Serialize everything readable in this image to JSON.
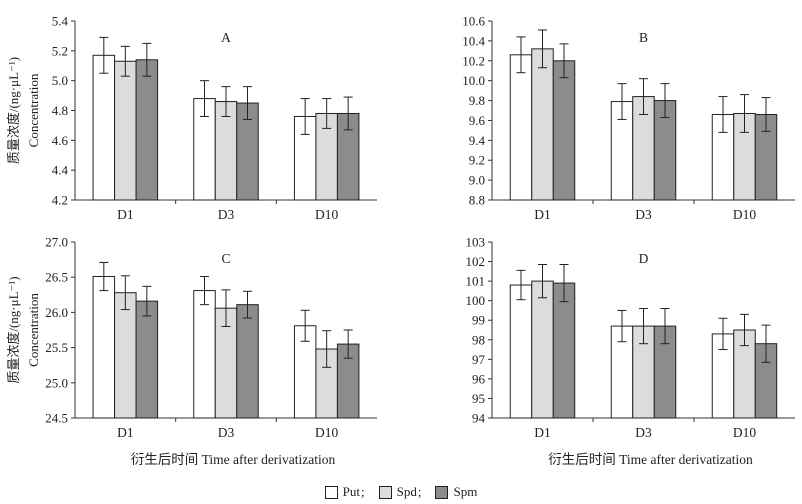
{
  "chart_data": [
    {
      "type": "bar",
      "panel_label": "A",
      "ylabel_cn": "质量浓度/(ng·μL⁻¹)",
      "ylabel_en": "Concentration",
      "xlabel": "",
      "categories": [
        "D1",
        "D3",
        "D10"
      ],
      "ylim": [
        4.2,
        5.4
      ],
      "yticks": [
        "4.2",
        "4.4",
        "4.6",
        "4.8",
        "5.0",
        "5.2",
        "5.4"
      ],
      "series": [
        {
          "name": "Put",
          "values": [
            5.17,
            4.88,
            4.76
          ],
          "errors": [
            0.12,
            0.12,
            0.12
          ]
        },
        {
          "name": "Spd",
          "values": [
            5.13,
            4.86,
            4.78
          ],
          "errors": [
            0.1,
            0.1,
            0.1
          ]
        },
        {
          "name": "Spm",
          "values": [
            5.14,
            4.85,
            4.78
          ],
          "errors": [
            0.11,
            0.11,
            0.11
          ]
        }
      ]
    },
    {
      "type": "bar",
      "panel_label": "B",
      "ylabel_cn": "",
      "ylabel_en": "",
      "xlabel": "",
      "categories": [
        "D1",
        "D3",
        "D10"
      ],
      "ylim": [
        8.8,
        10.6
      ],
      "yticks": [
        "8.8",
        "9.0",
        "9.2",
        "9.4",
        "9.6",
        "9.8",
        "10.0",
        "10.2",
        "10.4",
        "10.6"
      ],
      "series": [
        {
          "name": "Put",
          "values": [
            10.26,
            9.79,
            9.66
          ],
          "errors": [
            0.18,
            0.18,
            0.18
          ]
        },
        {
          "name": "Spd",
          "values": [
            10.32,
            9.84,
            9.67
          ],
          "errors": [
            0.19,
            0.18,
            0.19
          ]
        },
        {
          "name": "Spm",
          "values": [
            10.2,
            9.8,
            9.66
          ],
          "errors": [
            0.17,
            0.17,
            0.17
          ]
        }
      ]
    },
    {
      "type": "bar",
      "panel_label": "C",
      "ylabel_cn": "质量浓度/(ng·μL⁻¹)",
      "ylabel_en": "Concentration",
      "xlabel": "衍生后时间  Time after derivatization",
      "categories": [
        "D1",
        "D3",
        "D10"
      ],
      "ylim": [
        24.5,
        27.0
      ],
      "yticks": [
        "24.5",
        "25.0",
        "25.5",
        "26.0",
        "26.5",
        "27.0"
      ],
      "series": [
        {
          "name": "Put",
          "values": [
            26.51,
            26.31,
            25.81
          ],
          "errors": [
            0.2,
            0.2,
            0.22
          ]
        },
        {
          "name": "Spd",
          "values": [
            26.28,
            26.06,
            25.48
          ],
          "errors": [
            0.24,
            0.26,
            0.26
          ]
        },
        {
          "name": "Spm",
          "values": [
            26.16,
            26.11,
            25.55
          ],
          "errors": [
            0.21,
            0.19,
            0.2
          ]
        }
      ]
    },
    {
      "type": "bar",
      "panel_label": "D",
      "ylabel_cn": "",
      "ylabel_en": "",
      "xlabel": "衍生后时间  Time after derivatization",
      "categories": [
        "D1",
        "D3",
        "D10"
      ],
      "ylim": [
        94,
        103
      ],
      "yticks": [
        "94",
        "95",
        "96",
        "97",
        "98",
        "99",
        "100",
        "101",
        "102",
        "103"
      ],
      "series": [
        {
          "name": "Put",
          "values": [
            100.8,
            98.7,
            98.3
          ],
          "errors": [
            0.75,
            0.8,
            0.8
          ]
        },
        {
          "name": "Spd",
          "values": [
            101.0,
            98.7,
            98.5
          ],
          "errors": [
            0.85,
            0.9,
            0.8
          ]
        },
        {
          "name": "Spm",
          "values": [
            100.9,
            98.7,
            97.8
          ],
          "errors": [
            0.95,
            0.9,
            0.95
          ]
        }
      ]
    }
  ],
  "legend": {
    "items": [
      {
        "label": "Put",
        "sep": ";",
        "color": "#ffffff"
      },
      {
        "label": "Spd",
        "sep": ";",
        "color": "#dcdcdc"
      },
      {
        "label": "Spm",
        "sep": "",
        "color": "#8c8c8c"
      }
    ]
  }
}
